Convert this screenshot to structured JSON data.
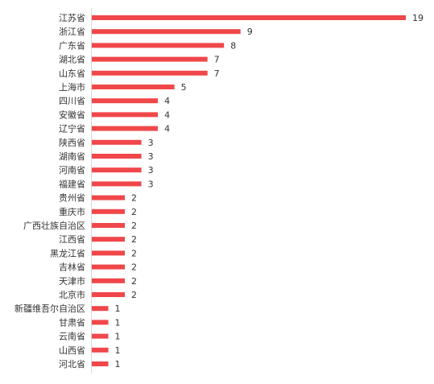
{
  "chart_data": {
    "type": "bar",
    "orientation": "horizontal",
    "categories": [
      "江苏省",
      "浙江省",
      "广东省",
      "湖北省",
      "山东省",
      "上海市",
      "四川省",
      "安徽省",
      "辽宁省",
      "陕西省",
      "湖南省",
      "河南省",
      "福建省",
      "贵州省",
      "重庆市",
      "广西壮族自治区",
      "江西省",
      "黑龙江省",
      "吉林省",
      "天津市",
      "北京市",
      "新疆维吾尔自治区",
      "甘肃省",
      "云南省",
      "山西省",
      "河北省"
    ],
    "values": [
      19,
      9,
      8,
      7,
      7,
      5,
      4,
      4,
      4,
      3,
      3,
      3,
      3,
      2,
      2,
      2,
      2,
      2,
      2,
      2,
      2,
      1,
      1,
      1,
      1,
      1
    ],
    "xlim": [
      0,
      19
    ],
    "bar_color": "#f0474a",
    "axis_color": "#d9d9d9",
    "grid": false,
    "legend": false,
    "data_labels": true
  }
}
